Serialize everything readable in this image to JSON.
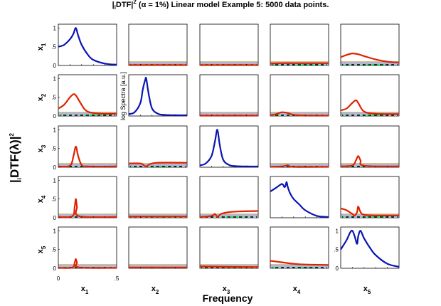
{
  "title": {
    "main_prefix": "|",
    "main_sub": "i",
    "main_mid": "DTF|",
    "main_sup": "2",
    "main_rest": " (α = 1%) Linear model Example 5: 5000 data points."
  },
  "labels": {
    "y_big": "|",
    "y_big_sub": "i",
    "y_big_mid": "DTF(λ)|",
    "y_big_sup": "2",
    "x_big": "Frequency",
    "log_spectra": "log Spectra [a.u.]"
  },
  "variables": [
    "x",
    "x",
    "x",
    "x",
    "x"
  ],
  "variable_subs": [
    "1",
    "2",
    "3",
    "4",
    "5"
  ],
  "colors": {
    "offdiag": "#dd2200",
    "diag": "#0a14b4",
    "band": "#b4b4dc",
    "band_green": "#00ee44",
    "dash": "#000000"
  },
  "chart_data": {
    "type": "line",
    "grid": "5x5 matrix of panels",
    "x_range": [
      0,
      0.5
    ],
    "x_ticks": [
      "0",
      ".5"
    ],
    "y_range": [
      0,
      1.1
    ],
    "y_ticks": [
      "0",
      ".5",
      "1"
    ],
    "diagonal": "log spectra (normalized)",
    "panels": [
      [
        {
          "row": 1,
          "col": 1,
          "kind": "diag",
          "x": [
            0,
            0.05,
            0.1,
            0.13,
            0.15,
            0.17,
            0.2,
            0.25,
            0.3,
            0.4,
            0.5
          ],
          "y": [
            0.5,
            0.55,
            0.7,
            0.85,
            1.0,
            0.8,
            0.55,
            0.3,
            0.15,
            0.05,
            0.02
          ]
        },
        {
          "row": 1,
          "col": 2,
          "kind": "offdiag",
          "band": 0.1,
          "x": [
            0,
            0.5
          ],
          "y": [
            0.01,
            0.01
          ]
        },
        {
          "row": 1,
          "col": 3,
          "kind": "offdiag",
          "band": 0.1,
          "x": [
            0,
            0.5
          ],
          "y": [
            0.01,
            0.01
          ]
        },
        {
          "row": 1,
          "col": 4,
          "kind": "offdiag",
          "band": 0.1,
          "x": [
            0,
            0.1,
            0.2,
            0.3,
            0.5
          ],
          "y": [
            0.05,
            0.06,
            0.06,
            0.06,
            0.06
          ]
        },
        {
          "row": 1,
          "col": 5,
          "kind": "offdiag",
          "band": 0.1,
          "x": [
            0,
            0.05,
            0.1,
            0.15,
            0.2,
            0.3,
            0.4,
            0.5
          ],
          "y": [
            0.22,
            0.28,
            0.32,
            0.3,
            0.25,
            0.16,
            0.1,
            0.08
          ]
        }
      ],
      [
        {
          "row": 2,
          "col": 1,
          "kind": "offdiag",
          "band": 0.1,
          "x": [
            0,
            0.05,
            0.1,
            0.13,
            0.15,
            0.18,
            0.22,
            0.25,
            0.3,
            0.4,
            0.5
          ],
          "y": [
            0.2,
            0.3,
            0.5,
            0.58,
            0.55,
            0.4,
            0.2,
            0.12,
            0.08,
            0.06,
            0.06
          ]
        },
        {
          "row": 2,
          "col": 2,
          "kind": "diag",
          "x": [
            0,
            0.05,
            0.1,
            0.12,
            0.14,
            0.15,
            0.17,
            0.2,
            0.25,
            0.3,
            0.4,
            0.5
          ],
          "y": [
            0.05,
            0.1,
            0.35,
            0.7,
            0.95,
            1.0,
            0.6,
            0.2,
            0.06,
            0.03,
            0.02,
            0.02
          ]
        },
        {
          "row": 2,
          "col": 3,
          "kind": "offdiag",
          "band": 0.1,
          "x": [
            0,
            0.5
          ],
          "y": [
            0.01,
            0.01
          ]
        },
        {
          "row": 2,
          "col": 4,
          "kind": "offdiag",
          "band": 0.1,
          "x": [
            0,
            0.05,
            0.1,
            0.15,
            0.2,
            0.3,
            0.5
          ],
          "y": [
            0.02,
            0.05,
            0.1,
            0.08,
            0.03,
            0.01,
            0.01
          ]
        },
        {
          "row": 2,
          "col": 5,
          "kind": "offdiag",
          "band": 0.1,
          "x": [
            0,
            0.05,
            0.1,
            0.13,
            0.15,
            0.2,
            0.3,
            0.5
          ],
          "y": [
            0.15,
            0.2,
            0.35,
            0.42,
            0.35,
            0.12,
            0.06,
            0.05
          ]
        }
      ],
      [
        {
          "row": 3,
          "col": 1,
          "kind": "offdiag",
          "band": 0.1,
          "x": [
            0,
            0.1,
            0.13,
            0.15,
            0.17,
            0.2,
            0.25,
            0.5
          ],
          "y": [
            0.02,
            0.04,
            0.3,
            0.55,
            0.3,
            0.06,
            0.02,
            0.02
          ]
        },
        {
          "row": 3,
          "col": 2,
          "kind": "offdiag",
          "band": 0.1,
          "x": [
            0,
            0.1,
            0.13,
            0.15,
            0.18,
            0.25,
            0.5
          ],
          "y": [
            0.1,
            0.1,
            0.05,
            0.02,
            0.08,
            0.12,
            0.12
          ]
        },
        {
          "row": 3,
          "col": 3,
          "kind": "diag",
          "x": [
            0,
            0.05,
            0.1,
            0.13,
            0.15,
            0.17,
            0.2,
            0.25,
            0.3,
            0.4,
            0.5
          ],
          "y": [
            0.05,
            0.1,
            0.3,
            0.7,
            1.0,
            0.6,
            0.2,
            0.06,
            0.03,
            0.02,
            0.02
          ]
        },
        {
          "row": 3,
          "col": 4,
          "kind": "offdiag",
          "band": 0.1,
          "x": [
            0,
            0.1,
            0.15,
            0.2,
            0.5
          ],
          "y": [
            0.01,
            0.02,
            0.05,
            0.01,
            0.01
          ]
        },
        {
          "row": 3,
          "col": 5,
          "kind": "offdiag",
          "band": 0.1,
          "x": [
            0,
            0.1,
            0.13,
            0.15,
            0.17,
            0.2,
            0.5
          ],
          "y": [
            0.02,
            0.05,
            0.18,
            0.3,
            0.18,
            0.04,
            0.02
          ]
        }
      ],
      [
        {
          "row": 4,
          "col": 1,
          "kind": "offdiag",
          "band": 0.1,
          "x": [
            0,
            0.12,
            0.14,
            0.15,
            0.16,
            0.18,
            0.5
          ],
          "y": [
            0.02,
            0.04,
            0.3,
            0.5,
            0.3,
            0.04,
            0.02
          ]
        },
        {
          "row": 4,
          "col": 2,
          "kind": "offdiag",
          "band": 0.1,
          "x": [
            0,
            0.5
          ],
          "y": [
            0.03,
            0.03
          ]
        },
        {
          "row": 4,
          "col": 3,
          "kind": "offdiag",
          "band": 0.1,
          "x": [
            0,
            0.1,
            0.13,
            0.15,
            0.18,
            0.25,
            0.35,
            0.5
          ],
          "y": [
            0.02,
            0.05,
            0.1,
            0.02,
            0.1,
            0.15,
            0.17,
            0.18
          ]
        },
        {
          "row": 4,
          "col": 4,
          "kind": "diag",
          "x": [
            0,
            0.05,
            0.1,
            0.12,
            0.13,
            0.14,
            0.15,
            0.17,
            0.2,
            0.25,
            0.3,
            0.4,
            0.5
          ],
          "y": [
            0.7,
            0.8,
            0.9,
            0.82,
            0.85,
            0.95,
            0.82,
            0.65,
            0.5,
            0.35,
            0.2,
            0.05,
            0.02
          ]
        },
        {
          "row": 4,
          "col": 5,
          "kind": "offdiag",
          "band": 0.1,
          "x": [
            0,
            0.05,
            0.1,
            0.12,
            0.14,
            0.15,
            0.17,
            0.2,
            0.3,
            0.5
          ],
          "y": [
            0.25,
            0.2,
            0.1,
            0.06,
            0.15,
            0.3,
            0.15,
            0.08,
            0.06,
            0.06
          ]
        }
      ],
      [
        {
          "row": 5,
          "col": 1,
          "kind": "offdiag",
          "band": 0.1,
          "x": [
            0,
            0.12,
            0.14,
            0.15,
            0.16,
            0.18,
            0.5
          ],
          "y": [
            0.01,
            0.02,
            0.15,
            0.25,
            0.15,
            0.02,
            0.01
          ]
        },
        {
          "row": 5,
          "col": 2,
          "kind": "offdiag",
          "band": 0.1,
          "x": [
            0,
            0.5
          ],
          "y": [
            0.02,
            0.02
          ]
        },
        {
          "row": 5,
          "col": 3,
          "kind": "offdiag",
          "band": 0.1,
          "x": [
            0,
            0.2,
            0.5
          ],
          "y": [
            0.05,
            0.04,
            0.03
          ]
        },
        {
          "row": 5,
          "col": 4,
          "kind": "offdiag",
          "band": 0.1,
          "x": [
            0,
            0.1,
            0.2,
            0.3,
            0.5
          ],
          "y": [
            0.2,
            0.16,
            0.12,
            0.1,
            0.09
          ]
        },
        {
          "row": 5,
          "col": 5,
          "kind": "diag",
          "x": [
            0,
            0.05,
            0.08,
            0.1,
            0.12,
            0.14,
            0.15,
            0.17,
            0.2,
            0.25,
            0.3,
            0.4,
            0.5
          ],
          "y": [
            0.5,
            0.75,
            0.95,
            1.0,
            0.85,
            0.65,
            0.85,
            1.0,
            0.8,
            0.55,
            0.35,
            0.12,
            0.04
          ]
        }
      ]
    ]
  }
}
